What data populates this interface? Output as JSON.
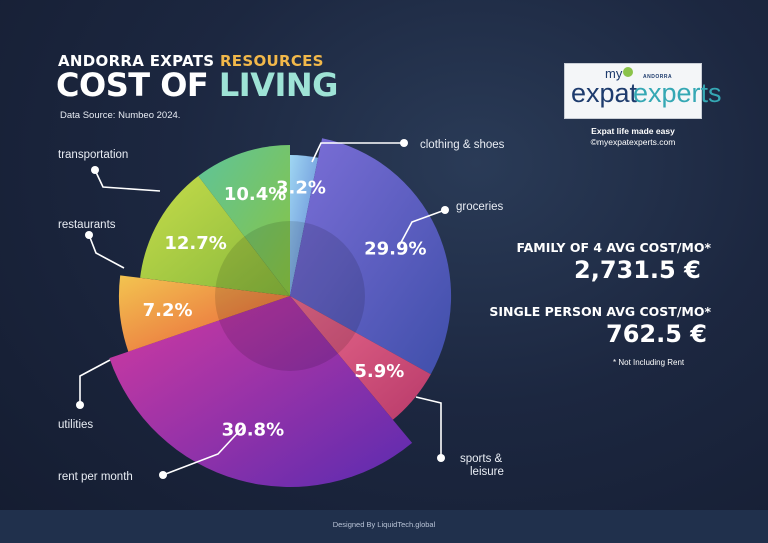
{
  "header": {
    "brand": "ANDORRA EXPATS",
    "section": "RESOURCES",
    "title_part1": "COST OF",
    "title_part2": "LIVING",
    "source": "Data Source: Numbeo 2024."
  },
  "logo": {
    "my": "my",
    "country": "ANDORRA",
    "expat": "expat",
    "experts": "experts",
    "tagline": "Expat life made easy",
    "site": "©myexpatexperts.com"
  },
  "stats": {
    "family_label": "FAMILY OF 4 AVG COST/MO*",
    "family_value": "2,731.5 €",
    "single_label": "SINGLE PERSON AVG COST/MO*",
    "single_value": "762.5 €",
    "footnote": "*   Not Including Rent"
  },
  "footer": {
    "text": "Designed By  LiquidTech.global"
  },
  "colors": {
    "accent_orange": "#f2b84a",
    "accent_teal": "#9ee3d6"
  },
  "chart_data": {
    "type": "pie",
    "unit": "%",
    "categories": [
      "clothing & shoes",
      "groceries",
      "sports & leisure",
      "rent per month",
      "utilities",
      "restaurants",
      "transportation"
    ],
    "values": [
      3.2,
      29.9,
      5.9,
      30.8,
      7.2,
      12.7,
      10.4
    ],
    "labels": [
      "3.2%",
      "29.9%",
      "5.9%",
      "30.8%",
      "7.2%",
      "12.7%",
      "10.4%"
    ],
    "legend": [
      {
        "name": "clothing & shoes",
        "lines": [
          "clothing & shoes"
        ]
      },
      {
        "name": "groceries",
        "lines": [
          "groceries"
        ]
      },
      {
        "name": "sports & leisure",
        "lines": [
          "sports &",
          "leisure"
        ]
      },
      {
        "name": "rent per month",
        "lines": [
          "rent per month"
        ]
      },
      {
        "name": "utilities",
        "lines": [
          "utilities"
        ]
      },
      {
        "name": "restaurants",
        "lines": [
          "restaurants"
        ]
      },
      {
        "name": "transportation",
        "lines": [
          "transportation"
        ]
      }
    ],
    "colors": [
      [
        "#9fd6f2",
        "#5b7fd3"
      ],
      [
        "#7d6fd8",
        "#3f4faa"
      ],
      [
        "#e96a8c",
        "#b83a6a"
      ],
      [
        "#d43aa0",
        "#5a2bb0"
      ],
      [
        "#f3c450",
        "#e85a3a"
      ],
      [
        "#c6dc4a",
        "#86b83c"
      ],
      [
        "#5ec49a",
        "#8ac440"
      ]
    ]
  }
}
